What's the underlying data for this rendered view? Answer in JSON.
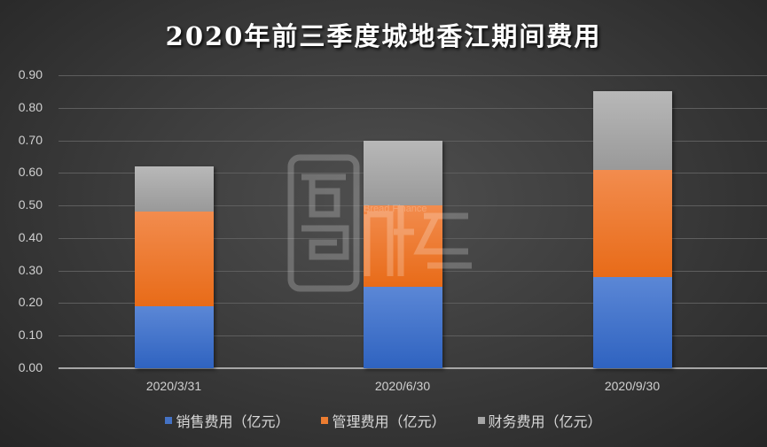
{
  "title": "2020年前三季度城地香江期间费用",
  "watermark": {
    "brand_cn": "面包财经",
    "brand_en": "Bread Finance"
  },
  "y_axis": {
    "ticks": [
      "0.90",
      "0.80",
      "0.70",
      "0.60",
      "0.50",
      "0.40",
      "0.30",
      "0.20",
      "0.10",
      "0.00"
    ]
  },
  "x_axis": {
    "ticks": [
      "2020/3/31",
      "2020/6/30",
      "2020/9/30"
    ]
  },
  "legend": [
    {
      "label": "销售费用（亿元）",
      "color": "#4472c4"
    },
    {
      "label": "管理费用（亿元）",
      "color": "#ed7d31"
    },
    {
      "label": "财务费用（亿元）",
      "color": "#a5a5a5"
    }
  ],
  "chart_data": {
    "type": "bar",
    "stacked": true,
    "title": "2020年前三季度城地香江期间费用",
    "categories": [
      "2020/3/31",
      "2020/6/30",
      "2020/9/30"
    ],
    "series": [
      {
        "name": "销售费用（亿元）",
        "color": "#4472c4",
        "values": [
          0.19,
          0.25,
          0.28
        ]
      },
      {
        "name": "管理费用（亿元）",
        "color": "#ed7d31",
        "values": [
          0.29,
          0.25,
          0.33
        ]
      },
      {
        "name": "财务费用（亿元）",
        "color": "#a5a5a5",
        "values": [
          0.14,
          0.2,
          0.24
        ]
      }
    ],
    "totals": [
      0.62,
      0.7,
      0.85
    ],
    "xlabel": "",
    "ylabel": "",
    "ylim": [
      0,
      0.9
    ],
    "ytick_step": 0.1,
    "grid": true,
    "legend_position": "bottom"
  }
}
